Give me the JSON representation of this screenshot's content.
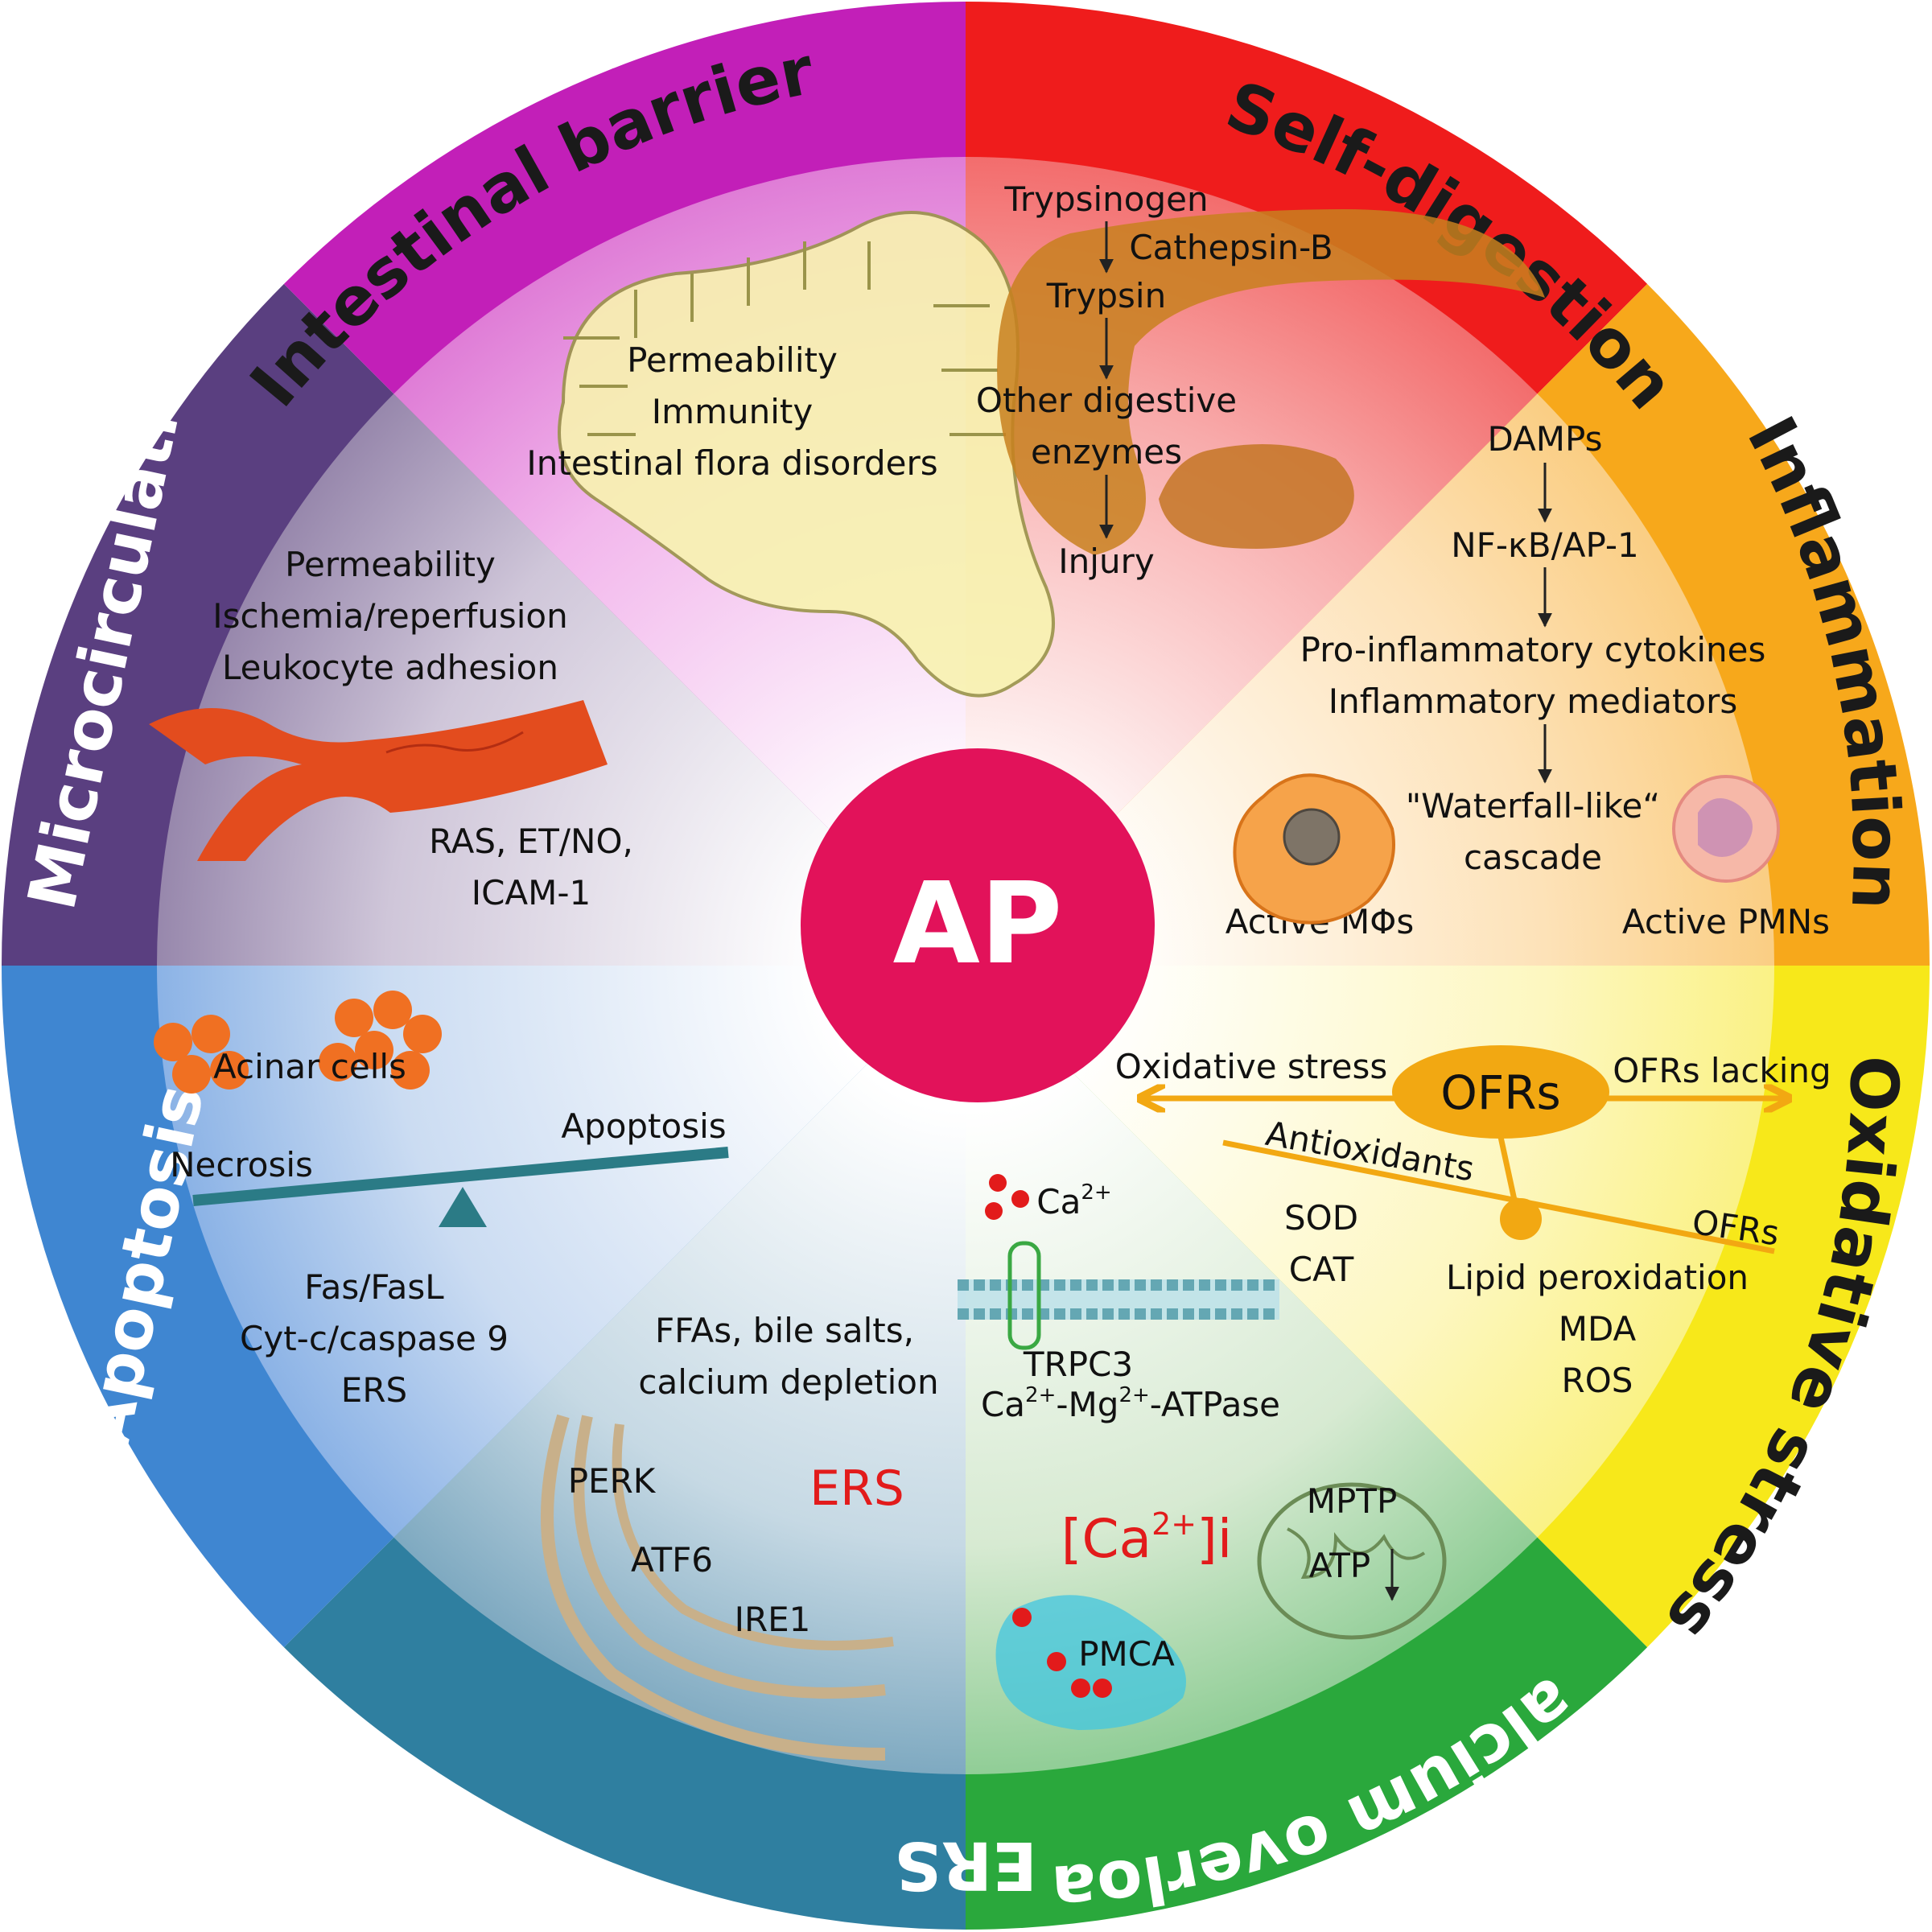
{
  "center_label": "AP",
  "colors": {
    "self_digestion": "#ef1c1c",
    "inflammation": "#f7a81b",
    "oxidative_stress": "#f7e81a",
    "calcium_overload": "#2aa83c",
    "ers": "#2f7fa0",
    "apoptosis": "#3f86d1",
    "microcirculation": "#5a3f80",
    "intestinal_barrier": "#c21fb8",
    "center": "#e2125a"
  },
  "sectors": {
    "self_digestion": {
      "title": "Self-digestion",
      "trypsinogen": "Trypsinogen",
      "cathepsin": "Cathepsin-B",
      "trypsin": "Trypsin",
      "other_line1": "Other digestive",
      "other_line2": "enzymes",
      "injury": "Injury"
    },
    "inflammation": {
      "title": "Inflammation",
      "damps": "DAMPs",
      "nfkb": "NF-κB/AP-1",
      "pro": "Pro-inflammatory cytokines",
      "mediators": "Inflammatory mediators",
      "waterfall": "\"Waterfall-like“",
      "cascade": "cascade",
      "macrophages": "Active MΦs",
      "pmns": "Active PMNs"
    },
    "oxidative_stress": {
      "title": "Oxidative stress",
      "ofrs": "OFRs",
      "oxidative": "Oxidative stress",
      "lacking": "OFRs lacking",
      "antioxidants": "Antioxidants",
      "sod": "SOD",
      "cat": "CAT",
      "ofrs_small": "OFRs",
      "lipid": "Lipid peroxidation",
      "mda": "MDA",
      "ros": "ROS"
    },
    "calcium_overload": {
      "title": "Calcium overload",
      "ca": "Ca",
      "ca_sup": "2+",
      "trpc3": "TRPC3",
      "atpase_a": "Ca",
      "atpase_b": "-Mg",
      "atpase_c": "-ATPase",
      "sup": "2+",
      "cai_a": "[Ca",
      "cai_b": "]i",
      "mptp": "MPTP",
      "atp": "ATP",
      "pmca": "PMCA"
    },
    "ers": {
      "title": "ERS",
      "label_red": "ERS",
      "ffas": "FFAs, bile salts,",
      "calcium": "calcium depletion",
      "perk": "PERK",
      "atf6": "ATF6",
      "ire1": "IRE1"
    },
    "apoptosis": {
      "title": "Apoptosis",
      "acinar": "Acinar cells",
      "necrosis": "Necrosis",
      "apoptosis": "Apoptosis",
      "fas": "Fas/FasL",
      "cyt": "Cyt-c/caspase 9",
      "ers": "ERS"
    },
    "microcirculation": {
      "title": "Microcirculation",
      "perm": "Permeability",
      "ischemia": "Ischemia/reperfusion",
      "leuko": "Leukocyte adhesion",
      "ras": "RAS, ET/NO,",
      "icam": "ICAM-1"
    },
    "intestinal_barrier": {
      "title": "Intestinal barrier",
      "perm": "Permeability",
      "immunity": "Immunity",
      "flora": "Intestinal flora disorders"
    }
  }
}
